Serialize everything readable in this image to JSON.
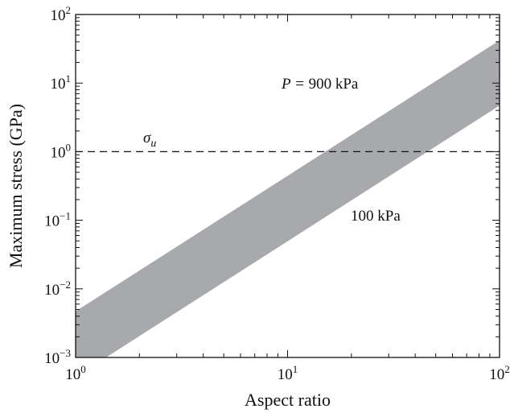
{
  "chart_data": {
    "type": "area",
    "xlabel": "Aspect ratio",
    "ylabel": "Maximum stress (GPa)",
    "x_scale": "log",
    "y_scale": "log",
    "xlim": [
      1,
      100
    ],
    "ylim": [
      0.001,
      100
    ],
    "x_ticks": [
      {
        "value": 1,
        "base": "10",
        "exp": "0"
      },
      {
        "value": 10,
        "base": "10",
        "exp": "1"
      },
      {
        "value": 100,
        "base": "10",
        "exp": "2"
      }
    ],
    "y_ticks": [
      {
        "value": 0.001,
        "base": "10",
        "exp": "−3"
      },
      {
        "value": 0.01,
        "base": "10",
        "exp": "−2"
      },
      {
        "value": 0.1,
        "base": "10",
        "exp": "−1"
      },
      {
        "value": 1,
        "base": "10",
        "exp": "0"
      },
      {
        "value": 10,
        "base": "10",
        "exp": "1"
      },
      {
        "value": 100,
        "base": "10",
        "exp": "2"
      }
    ],
    "grid": false,
    "band": {
      "color": "#a7a9ac",
      "upper": {
        "label": "900 kPa",
        "label_prefix": "P = ",
        "x": [
          1,
          100
        ],
        "y": [
          0.0047,
          42
        ]
      },
      "lower": {
        "label": "100 kPa",
        "x": [
          1,
          100
        ],
        "y": [
          0.00052,
          4.7
        ]
      }
    },
    "reference_line": {
      "label": "σ",
      "label_sub": "u",
      "y": 1,
      "style": "dashed"
    }
  }
}
